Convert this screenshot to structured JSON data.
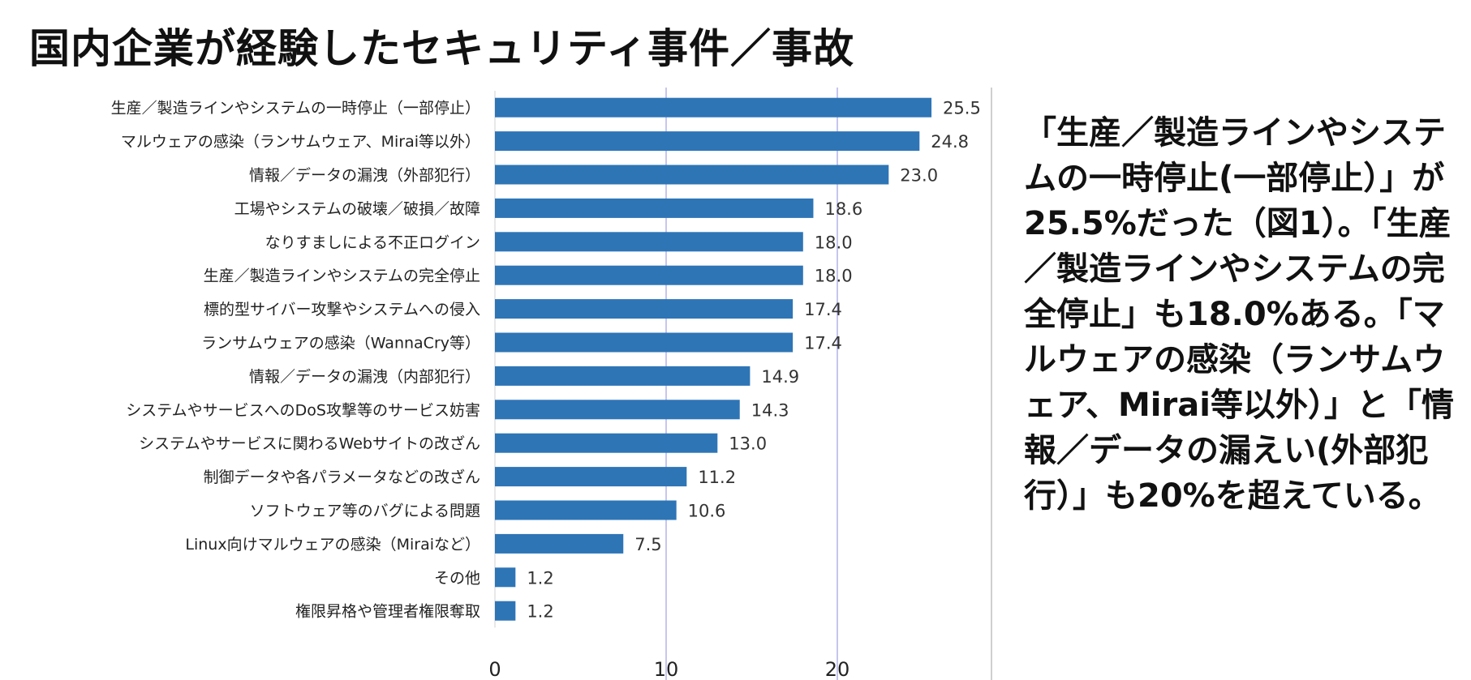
{
  "title": "国内企業が経験したセキュリティ事件／事故",
  "description": "「生産／製造ラインやシステムの一時停止(一部停止）」が25.5%だった（図1）。「生産／製造ラインやシステムの完全停止」も18.0%ある。「マルウェアの感染（ランサムウェア、Mirai等以外）」と「情報／データの漏えい(外部犯行）」も20%を超えている。",
  "colors": {
    "bar": "#2e75b6",
    "grid": "#b4b4ec",
    "frame": "#bfbfbf"
  },
  "chart_data": {
    "type": "bar",
    "orientation": "horizontal",
    "categories": [
      "生産／製造ラインやシステムの一時停止（一部停止）",
      "マルウェアの感染（ランサムウェア、Mirai等以外）",
      "情報／データの漏洩（外部犯行）",
      "工場やシステムの破壊／破損／故障",
      "なりすましによる不正ログイン",
      "生産／製造ラインやシステムの完全停止",
      "標的型サイバー攻撃やシステムへの侵入",
      "ランサムウェアの感染（WannaCry等）",
      "情報／データの漏洩（内部犯行）",
      "システムやサービスへのDoS攻撃等のサービス妨害",
      "システムやサービスに関わるWebサイトの改ざん",
      "制御データや各パラメータなどの改ざん",
      "ソフトウェア等のバグによる問題",
      "Linux向けマルウェアの感染（Miraiなど）",
      "その他",
      "権限昇格や管理者権限奪取"
    ],
    "values": [
      25.5,
      24.8,
      23.0,
      18.6,
      18.0,
      18.0,
      17.4,
      17.4,
      14.9,
      14.3,
      13.0,
      11.2,
      10.6,
      7.5,
      1.2,
      1.2
    ],
    "value_labels": [
      "25.5",
      "24.8",
      "23.0",
      "18.6",
      "18.0",
      "18.0",
      "17.4",
      "17.4",
      "14.9",
      "14.3",
      "13.0",
      "11.2",
      "10.6",
      "7.5",
      "1.2",
      "1.2"
    ],
    "xticks": [
      0,
      10,
      20
    ],
    "xlim": [
      0,
      29
    ],
    "grid": true
  }
}
